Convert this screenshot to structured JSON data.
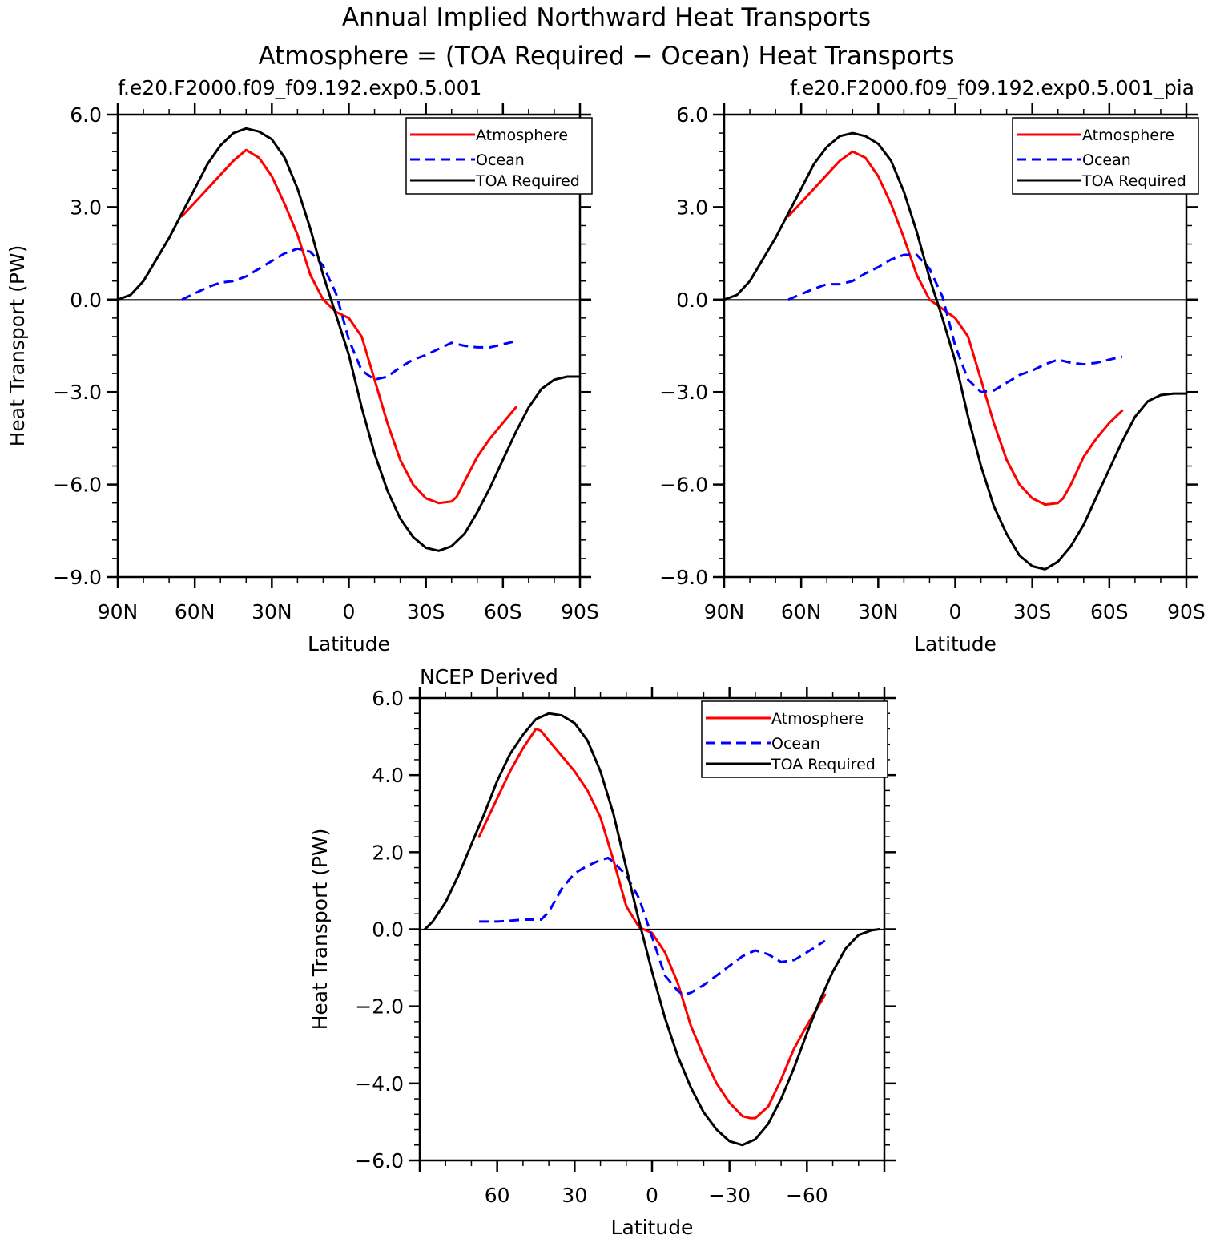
{
  "figure": {
    "title_line1": "Annual Implied Northward Heat Transports",
    "title_line2": "Atmosphere = (TOA Required − Ocean) Heat Transports"
  },
  "colors": {
    "atmosphere": "#ff0000",
    "ocean": "#0000ff",
    "toa": "#000000",
    "zero_line": "#000000"
  },
  "chart_data": [
    {
      "type": "line",
      "title": "f.e20.F2000.f09_f09.192.exp0.5.001",
      "xlabel": "Latitude",
      "ylabel": "Heat Transport (PW)",
      "xlim": [
        90,
        -90
      ],
      "ylim": [
        -9,
        6
      ],
      "xticks": [
        90,
        60,
        30,
        0,
        -30,
        -60,
        -90
      ],
      "xtick_labels": [
        "90N",
        "60N",
        "30N",
        "0",
        "30S",
        "60S",
        "90S"
      ],
      "yticks": [
        6,
        3,
        0,
        -3,
        -6,
        -9
      ],
      "ytick_labels": [
        "6.0",
        "3.0",
        "0.0",
        "−3.0",
        "−6.0",
        "−9.0"
      ],
      "zero_line": true,
      "legend_position": "top-right",
      "series": [
        {
          "name": "Atmosphere",
          "style": "solid",
          "color_key": "atmosphere",
          "x": [
            65,
            55,
            45,
            40,
            35,
            30,
            25,
            20,
            15,
            10,
            5,
            0,
            -5,
            -10,
            -15,
            -20,
            -25,
            -30,
            -35,
            -40,
            -42,
            -45,
            -50,
            -55,
            -60,
            -65
          ],
          "y": [
            2.7,
            3.6,
            4.5,
            4.85,
            4.6,
            4.0,
            3.1,
            2.1,
            0.8,
            0.0,
            -0.4,
            -0.6,
            -1.2,
            -2.6,
            -4.0,
            -5.2,
            -6.0,
            -6.45,
            -6.6,
            -6.55,
            -6.4,
            -5.9,
            -5.1,
            -4.5,
            -4.0,
            -3.5
          ]
        },
        {
          "name": "Ocean",
          "style": "dashed",
          "color_key": "ocean",
          "x": [
            65,
            55,
            50,
            45,
            40,
            35,
            30,
            25,
            20,
            15,
            10,
            5,
            0,
            -5,
            -10,
            -15,
            -20,
            -25,
            -30,
            -35,
            -40,
            -45,
            -50,
            -55,
            -60,
            -65
          ],
          "y": [
            0.0,
            0.4,
            0.55,
            0.6,
            0.75,
            1.0,
            1.25,
            1.5,
            1.65,
            1.55,
            1.1,
            0.2,
            -1.3,
            -2.3,
            -2.6,
            -2.5,
            -2.2,
            -1.95,
            -1.8,
            -1.6,
            -1.4,
            -1.5,
            -1.55,
            -1.55,
            -1.45,
            -1.35
          ]
        },
        {
          "name": "TOA Required",
          "style": "solid",
          "color_key": "toa",
          "x": [
            90,
            85,
            80,
            75,
            70,
            65,
            60,
            55,
            50,
            45,
            40,
            35,
            30,
            25,
            20,
            15,
            10,
            5,
            0,
            -5,
            -10,
            -15,
            -20,
            -25,
            -30,
            -35,
            -40,
            -45,
            -50,
            -55,
            -60,
            -65,
            -70,
            -75,
            -80,
            -85,
            -90
          ],
          "y": [
            0.0,
            0.15,
            0.6,
            1.3,
            2.0,
            2.8,
            3.6,
            4.4,
            5.0,
            5.4,
            5.55,
            5.45,
            5.2,
            4.6,
            3.6,
            2.3,
            0.8,
            -0.5,
            -1.8,
            -3.5,
            -5.0,
            -6.2,
            -7.1,
            -7.7,
            -8.05,
            -8.15,
            -8.0,
            -7.6,
            -6.9,
            -6.1,
            -5.2,
            -4.3,
            -3.5,
            -2.9,
            -2.6,
            -2.5,
            -2.5
          ]
        }
      ]
    },
    {
      "type": "line",
      "title": "f.e20.F2000.f09_f09.192.exp0.5.001_pia",
      "xlabel": "Latitude",
      "ylabel": "",
      "xlim": [
        90,
        -90
      ],
      "ylim": [
        -9,
        6
      ],
      "xticks": [
        90,
        60,
        30,
        0,
        -30,
        -60,
        -90
      ],
      "xtick_labels": [
        "90N",
        "60N",
        "30N",
        "0",
        "30S",
        "60S",
        "90S"
      ],
      "yticks": [
        6,
        3,
        0,
        -3,
        -6,
        -9
      ],
      "ytick_labels": [
        "6.0",
        "3.0",
        "0.0",
        "−3.0",
        "−6.0",
        "−9.0"
      ],
      "zero_line": true,
      "legend_position": "top-right",
      "series": [
        {
          "name": "Atmosphere",
          "style": "solid",
          "color_key": "atmosphere",
          "x": [
            65,
            55,
            45,
            40,
            35,
            30,
            25,
            20,
            15,
            10,
            5,
            0,
            -5,
            -10,
            -15,
            -20,
            -25,
            -30,
            -35,
            -40,
            -42,
            -45,
            -50,
            -55,
            -60,
            -65
          ],
          "y": [
            2.7,
            3.6,
            4.5,
            4.8,
            4.6,
            4.0,
            3.1,
            2.0,
            0.8,
            0.0,
            -0.3,
            -0.6,
            -1.2,
            -2.6,
            -4.0,
            -5.2,
            -6.0,
            -6.45,
            -6.65,
            -6.6,
            -6.45,
            -6.0,
            -5.1,
            -4.5,
            -4.0,
            -3.6
          ]
        },
        {
          "name": "Ocean",
          "style": "dashed",
          "color_key": "ocean",
          "x": [
            65,
            55,
            50,
            45,
            40,
            35,
            30,
            25,
            20,
            15,
            10,
            5,
            0,
            -5,
            -10,
            -15,
            -20,
            -25,
            -30,
            -35,
            -40,
            -45,
            -50,
            -55,
            -60,
            -65
          ],
          "y": [
            0.0,
            0.35,
            0.5,
            0.5,
            0.6,
            0.85,
            1.05,
            1.3,
            1.45,
            1.45,
            1.0,
            0.1,
            -1.5,
            -2.6,
            -3.0,
            -2.95,
            -2.7,
            -2.45,
            -2.3,
            -2.1,
            -1.95,
            -2.05,
            -2.1,
            -2.05,
            -1.95,
            -1.85
          ]
        },
        {
          "name": "TOA Required",
          "style": "solid",
          "color_key": "toa",
          "x": [
            90,
            85,
            80,
            75,
            70,
            65,
            60,
            55,
            50,
            45,
            40,
            35,
            30,
            25,
            20,
            15,
            10,
            5,
            0,
            -5,
            -10,
            -15,
            -20,
            -25,
            -30,
            -35,
            -40,
            -45,
            -50,
            -55,
            -60,
            -65,
            -70,
            -75,
            -80,
            -85,
            -90
          ],
          "y": [
            0.0,
            0.15,
            0.6,
            1.3,
            2.0,
            2.8,
            3.6,
            4.4,
            4.95,
            5.3,
            5.4,
            5.3,
            5.05,
            4.5,
            3.5,
            2.2,
            0.7,
            -0.6,
            -2.0,
            -3.8,
            -5.4,
            -6.7,
            -7.6,
            -8.3,
            -8.65,
            -8.75,
            -8.5,
            -8.0,
            -7.3,
            -6.4,
            -5.5,
            -4.6,
            -3.8,
            -3.3,
            -3.1,
            -3.05,
            -3.05
          ]
        }
      ]
    },
    {
      "type": "line",
      "title": "NCEP Derived",
      "xlabel": "Latitude",
      "ylabel": "Heat Transport (PW)",
      "xlim": [
        90,
        -90
      ],
      "ylim": [
        -6,
        6
      ],
      "xticks": [
        60,
        30,
        0,
        -30,
        -60
      ],
      "xtick_labels": [
        "60",
        "30",
        "0",
        "−30",
        "−60"
      ],
      "yticks": [
        6,
        4,
        2,
        0,
        -2,
        -4,
        -6
      ],
      "ytick_labels": [
        "6.0",
        "4.0",
        "2.0",
        "0.0",
        "−2.0",
        "−4.0",
        "−6.0"
      ],
      "zero_line": true,
      "legend_position": "top-right",
      "series": [
        {
          "name": "Atmosphere",
          "style": "solid",
          "color_key": "atmosphere",
          "x": [
            67,
            60,
            55,
            50,
            45,
            43,
            40,
            35,
            30,
            25,
            20,
            15,
            10,
            5,
            0,
            -5,
            -10,
            -15,
            -20,
            -25,
            -30,
            -35,
            -38,
            -40,
            -45,
            -50,
            -55,
            -60,
            -67
          ],
          "y": [
            2.4,
            3.4,
            4.1,
            4.7,
            5.2,
            5.15,
            4.9,
            4.5,
            4.1,
            3.6,
            2.9,
            1.8,
            0.6,
            0.05,
            -0.1,
            -0.6,
            -1.4,
            -2.5,
            -3.3,
            -4.0,
            -4.5,
            -4.85,
            -4.9,
            -4.9,
            -4.6,
            -3.9,
            -3.1,
            -2.5,
            -1.7
          ]
        },
        {
          "name": "Ocean",
          "style": "dashed",
          "color_key": "ocean",
          "x": [
            67,
            60,
            55,
            50,
            45,
            43,
            40,
            35,
            30,
            25,
            20,
            17,
            15,
            10,
            5,
            0,
            -5,
            -10,
            -12,
            -15,
            -20,
            -25,
            -30,
            -35,
            -40,
            -45,
            -50,
            -55,
            -60,
            -67
          ],
          "y": [
            0.2,
            0.2,
            0.22,
            0.25,
            0.25,
            0.25,
            0.45,
            1.05,
            1.45,
            1.65,
            1.8,
            1.85,
            1.75,
            1.4,
            0.8,
            -0.2,
            -1.2,
            -1.6,
            -1.7,
            -1.65,
            -1.45,
            -1.2,
            -0.95,
            -0.7,
            -0.55,
            -0.65,
            -0.85,
            -0.8,
            -0.6,
            -0.3
          ]
        },
        {
          "name": "TOA Required",
          "style": "solid",
          "color_key": "toa",
          "x": [
            88,
            85,
            80,
            75,
            70,
            65,
            60,
            55,
            50,
            45,
            40,
            35,
            30,
            25,
            20,
            15,
            10,
            5,
            0,
            -5,
            -10,
            -15,
            -20,
            -25,
            -30,
            -35,
            -40,
            -45,
            -50,
            -55,
            -60,
            -65,
            -70,
            -75,
            -80,
            -85,
            -88
          ],
          "y": [
            0.0,
            0.2,
            0.7,
            1.4,
            2.2,
            3.0,
            3.85,
            4.55,
            5.05,
            5.45,
            5.6,
            5.55,
            5.35,
            4.9,
            4.1,
            3.0,
            1.6,
            0.2,
            -1.1,
            -2.3,
            -3.3,
            -4.1,
            -4.75,
            -5.2,
            -5.5,
            -5.6,
            -5.45,
            -5.05,
            -4.4,
            -3.6,
            -2.7,
            -1.85,
            -1.1,
            -0.5,
            -0.15,
            -0.03,
            0.0
          ]
        }
      ]
    }
  ]
}
